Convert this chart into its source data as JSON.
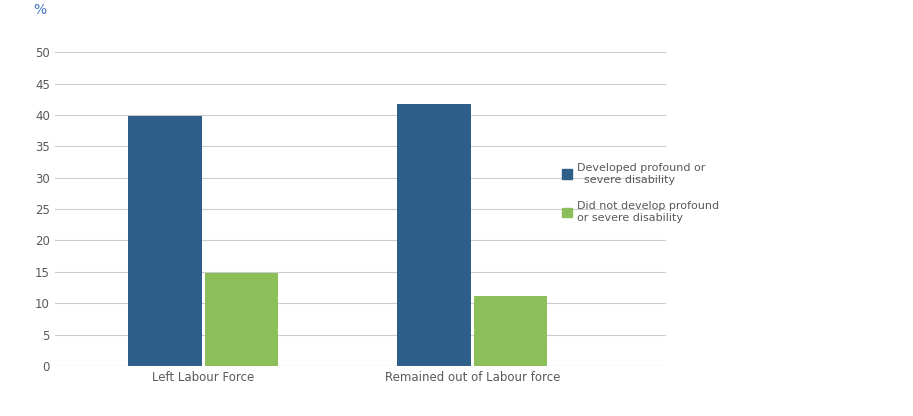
{
  "categories": [
    "Left Labour Force",
    "Remained out of Labour force"
  ],
  "series": [
    {
      "label": "Developed profound or\n  severe disability",
      "values": [
        39.8,
        41.8
      ],
      "color": "#2E5F8A"
    },
    {
      "label": "Did not develop profound\nor severe disability",
      "values": [
        14.8,
        11.1
      ],
      "color": "#8CBF5A"
    }
  ],
  "ylabel": "%",
  "ylim": [
    0,
    53
  ],
  "yticks": [
    0,
    5,
    10,
    15,
    20,
    25,
    30,
    35,
    40,
    45,
    50
  ],
  "bar_width": 0.12,
  "group_positions": [
    0.18,
    0.62
  ],
  "background_color": "#ffffff",
  "grid_color": "#cccccc",
  "ylabel_color": "#4472C4",
  "tick_label_color": "#595959",
  "legend_fontsize": 8.0,
  "tick_fontsize": 8.5,
  "xlabel_fontsize": 8.5
}
